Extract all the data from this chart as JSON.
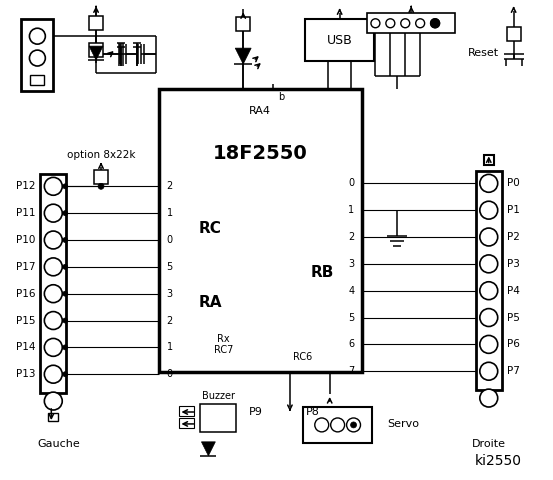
{
  "bg": "#ffffff",
  "chip_label": "18F2550",
  "ra4": "RA4",
  "rc_label": "RC",
  "ra_label": "RA",
  "rb_label": "RB",
  "rc7": "Rx\nRC7",
  "rc6": "RC6",
  "left_pins": [
    "P12",
    "P11",
    "P10",
    "P17",
    "P16",
    "P15",
    "P14",
    "P13"
  ],
  "right_pins": [
    "P0",
    "P1",
    "P2",
    "P3",
    "P4",
    "P5",
    "P6",
    "P7"
  ],
  "rc_nums": [
    "2",
    "1",
    "0",
    "5",
    "3",
    "2",
    "1",
    "0"
  ],
  "rb_nums": [
    "0",
    "1",
    "2",
    "3",
    "4",
    "5",
    "6",
    "7"
  ],
  "gauche": "Gauche",
  "droite": "Droite",
  "usb": "USB",
  "reset": "Reset",
  "buzzer": "Buzzer",
  "servo": "Servo",
  "p8": "P8",
  "p9": "P9",
  "option": "option 8x22k",
  "title": "ki2550"
}
